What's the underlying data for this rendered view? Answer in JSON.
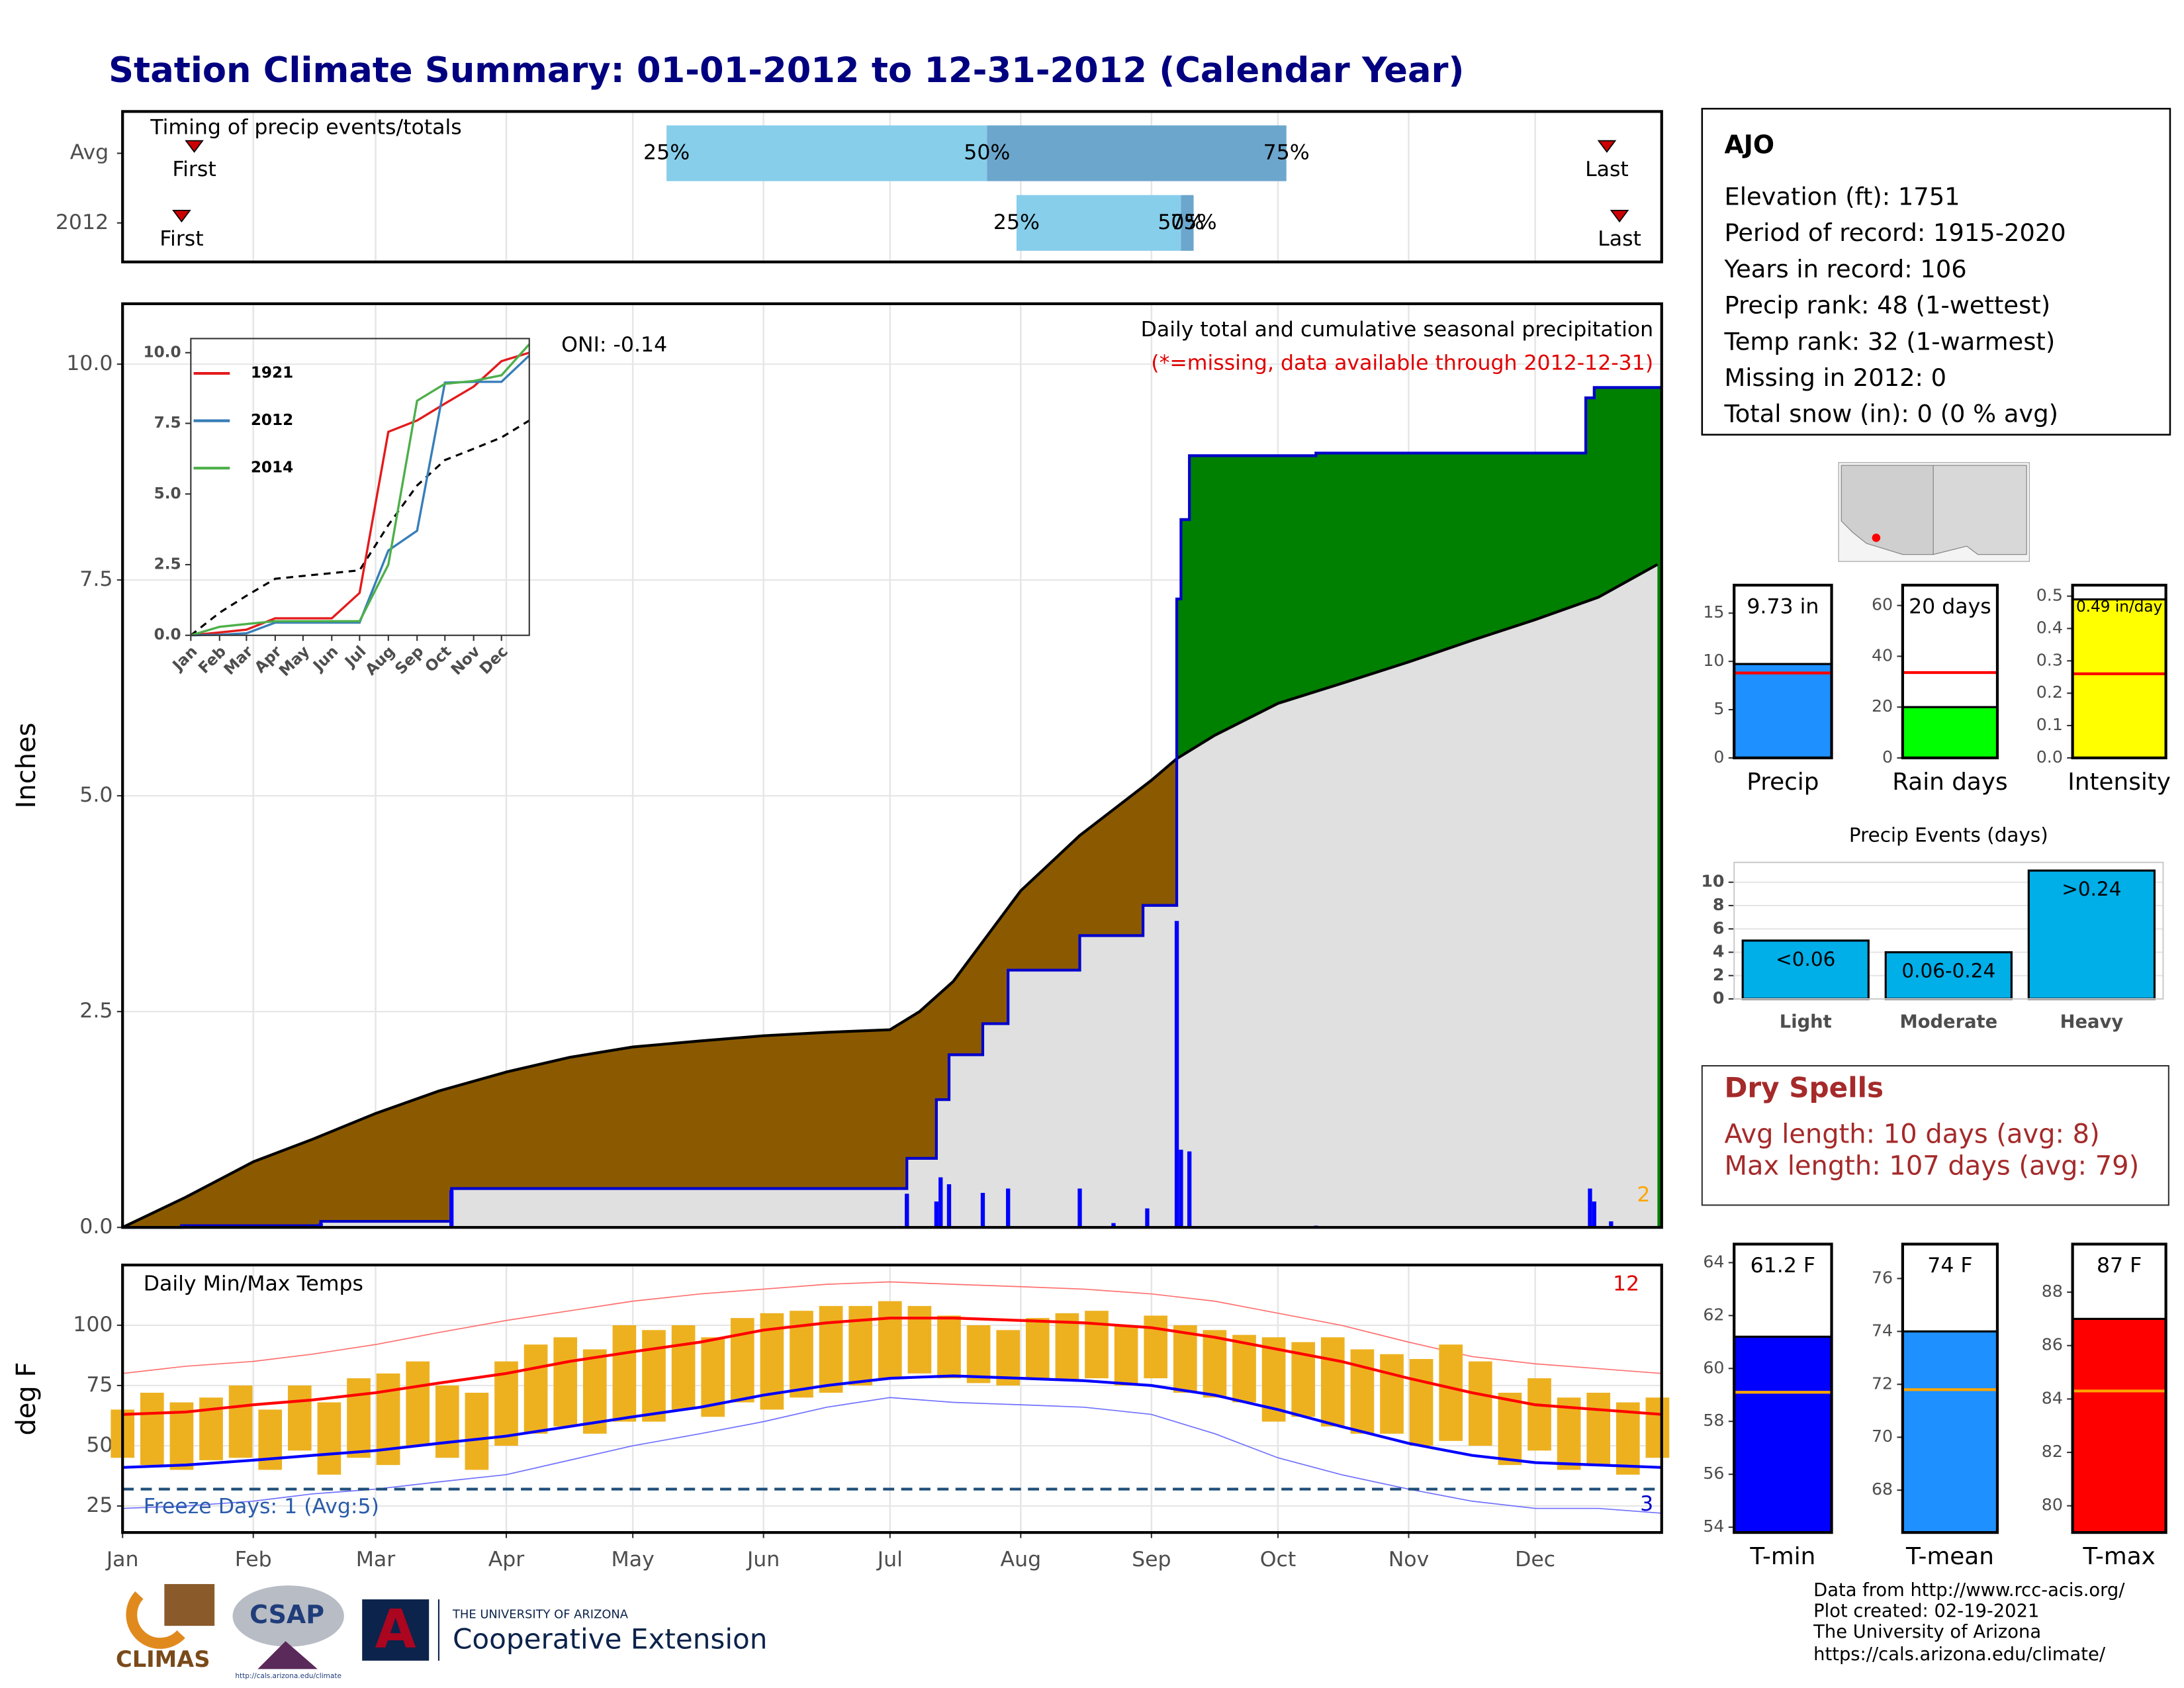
{
  "title": "Station Climate Summary: 01-01-2012 to 12-31-2012 (Calendar Year)",
  "station": {
    "name": "AJO",
    "lines": [
      "Elevation (ft): 1751",
      "Period of record: 1915-2020",
      "Years in record: 106",
      "Precip rank: 48 (1-wettest)",
      "Temp rank: 32 (1-warmest)",
      "Missing in 2012: 0",
      "Total snow (in): 0 (0 % avg)"
    ]
  },
  "dry_spells": {
    "title": "Dry Spells",
    "lines": [
      "Avg length: 10 days (avg: 8)",
      "Max length: 107 days (avg: 79)"
    ]
  },
  "footer": {
    "lines": [
      "Data from http://www.rcc-acis.org/",
      "Plot created: 02-19-2021",
      "The University of Arizona",
      "https://cals.arizona.edu/climate/"
    ]
  },
  "logos": {
    "climas": "CLIMAS",
    "csap": "CSAP",
    "csap_url": "http://cals.arizona.edu/climate",
    "university": "THE UNIVERSITY OF ARIZONA",
    "extension": "Cooperative Extension"
  },
  "chart_data": [
    {
      "type": "timing",
      "title": "Timing of precip events/totals",
      "xlim": [
        1,
        366
      ],
      "rows": [
        {
          "name": "Avg",
          "first": 18,
          "quartiles": [
            130,
            206,
            277
          ],
          "last": 353
        },
        {
          "name": "2012",
          "first": 15,
          "quartiles": [
            213,
            252,
            255
          ],
          "last": 356
        }
      ],
      "quartile_labels": [
        "25%",
        "50%",
        "75%"
      ],
      "first_label": "First",
      "last_label": "Last",
      "colors": [
        "#87ceeb",
        "#6ca6cd"
      ],
      "marker_color": "#cc0000",
      "grid": true
    },
    {
      "type": "cumulative",
      "title": "Daily total and cumulative seasonal precipitation",
      "subtitle": "(*=missing, data available through 2012-12-31)",
      "annotation": "ONI: -0.14",
      "note": "2",
      "ylabel": "Inches",
      "xlim": [
        1,
        366
      ],
      "ylim": [
        0,
        10.7
      ],
      "yticks": [
        {
          "value": 0,
          "label": "0.0"
        },
        2.5,
        {
          "value": 5,
          "label": "5.0"
        },
        7.5,
        {
          "value": 10,
          "label": "10.0"
        }
      ],
      "grid": true,
      "average": {
        "x": [
          1,
          16,
          32,
          46,
          61,
          76,
          92,
          107,
          122,
          138,
          153,
          168,
          183,
          190,
          198,
          214,
          228,
          245,
          251,
          260,
          275,
          290,
          306,
          321,
          336,
          351,
          365
        ],
        "values": [
          0,
          0.35,
          0.76,
          1.02,
          1.32,
          1.58,
          1.8,
          1.97,
          2.09,
          2.16,
          2.22,
          2.26,
          2.29,
          2.5,
          2.85,
          3.9,
          4.54,
          5.18,
          5.43,
          5.7,
          6.07,
          6.3,
          6.55,
          6.8,
          7.04,
          7.3,
          7.68
        ]
      },
      "observed": {
        "x": [
          1,
          15,
          15,
          48,
          48,
          79,
          79,
          187,
          187,
          194,
          194,
          197,
          197,
          205,
          205,
          211,
          211,
          228,
          228,
          243,
          243,
          251,
          251,
          252,
          252,
          254,
          254,
          284,
          284,
          348,
          348,
          350,
          350,
          366
        ],
        "values": [
          0,
          0,
          0.02,
          0.02,
          0.07,
          0.07,
          0.45,
          0.45,
          0.8,
          0.8,
          1.48,
          1.48,
          2.0,
          2.0,
          2.36,
          2.36,
          2.98,
          2.98,
          3.38,
          3.38,
          3.73,
          3.73,
          7.28,
          7.28,
          8.2,
          8.2,
          8.94,
          8.94,
          8.97,
          8.97,
          9.61,
          9.61,
          9.73,
          9.73
        ]
      },
      "daily": {
        "x": [
          15,
          48,
          79,
          187,
          194,
          195,
          197,
          205,
          211,
          228,
          236,
          244,
          251,
          252,
          254,
          284,
          349,
          350,
          354
        ],
        "values": [
          0.02,
          0.05,
          0.43,
          0.39,
          0.3,
          0.58,
          0.5,
          0.4,
          0.45,
          0.45,
          0.05,
          0.22,
          3.55,
          0.9,
          0.88,
          0.02,
          0.45,
          0.3,
          0.07
        ],
        "color": "#0000ff"
      },
      "colors": {
        "below": "#8b5a00",
        "above": "#008000",
        "base": "#e0e0e0",
        "observed_line": "#0000cc",
        "average_line": "#000000"
      }
    },
    {
      "type": "line",
      "xlim": [
        1,
        366
      ],
      "ylim": [
        0,
        10.5
      ],
      "yticks": [
        {
          "value": 0,
          "label": "0.0"
        },
        2.5,
        {
          "value": 5,
          "label": "5.0"
        },
        7.5,
        {
          "value": 10,
          "label": "10.0"
        }
      ],
      "xticks": [
        {
          "value": 1,
          "label": "Jan"
        },
        {
          "value": 32,
          "label": "Feb"
        },
        {
          "value": 61,
          "label": "Mar"
        },
        {
          "value": 92,
          "label": "Apr"
        },
        {
          "value": 122,
          "label": "May"
        },
        {
          "value": 153,
          "label": "Jun"
        },
        {
          "value": 183,
          "label": "Jul"
        },
        {
          "value": 214,
          "label": "Aug"
        },
        {
          "value": 245,
          "label": "Sep"
        },
        {
          "value": 275,
          "label": "Oct"
        },
        {
          "value": 306,
          "label": "Nov"
        },
        {
          "value": 336,
          "label": "Dec"
        }
      ],
      "x": [
        1,
        32,
        61,
        92,
        122,
        153,
        183,
        214,
        245,
        275,
        306,
        336,
        366
      ],
      "series": [
        {
          "name": "1921",
          "color": "#e41a1c",
          "values": [
            0,
            0.1,
            0.2,
            0.6,
            0.6,
            0.6,
            1.5,
            7.2,
            7.6,
            8.2,
            8.8,
            9.7,
            10.0
          ]
        },
        {
          "name": "2012",
          "color": "#377eb8",
          "values": [
            0,
            0.02,
            0.07,
            0.45,
            0.45,
            0.45,
            0.45,
            3.0,
            3.7,
            8.94,
            8.97,
            8.97,
            9.9
          ]
        },
        {
          "name": "2014",
          "color": "#4daf4a",
          "values": [
            0,
            0.3,
            0.4,
            0.5,
            0.5,
            0.5,
            0.5,
            2.5,
            8.3,
            8.9,
            9.0,
            9.2,
            10.3
          ]
        }
      ],
      "reference": {
        "color": "#000000",
        "dash": true,
        "values": [
          0,
          0.8,
          1.4,
          2.0,
          2.1,
          2.2,
          2.3,
          3.9,
          5.3,
          6.2,
          6.6,
          7.0,
          7.6
        ]
      }
    },
    {
      "type": "temperature",
      "title": "Daily Min/Max Temps",
      "ylabel": "deg F",
      "xlim": [
        1,
        366
      ],
      "ylim": [
        14,
        125
      ],
      "yticks": [
        25,
        50,
        75,
        100
      ],
      "grid": true,
      "xticks": [
        {
          "value": 1,
          "label": "Jan"
        },
        {
          "value": 32,
          "label": "Feb"
        },
        {
          "value": 61,
          "label": "Mar"
        },
        {
          "value": 92,
          "label": "Apr"
        },
        {
          "value": 122,
          "label": "May"
        },
        {
          "value": 153,
          "label": "Jun"
        },
        {
          "value": 183,
          "label": "Jul"
        },
        {
          "value": 214,
          "label": "Aug"
        },
        {
          "value": 245,
          "label": "Sep"
        },
        {
          "value": 275,
          "label": "Oct"
        },
        {
          "value": 306,
          "label": "Nov"
        },
        {
          "value": 336,
          "label": "Dec"
        }
      ],
      "annotation": "Freeze Days: 1 (Avg:5)",
      "record_high_count": 12,
      "record_low_count": 3,
      "freeze_line": 32,
      "observed": {
        "x": [
          1,
          8,
          15,
          22,
          29,
          36,
          43,
          50,
          57,
          64,
          71,
          78,
          85,
          92,
          99,
          106,
          113,
          120,
          127,
          134,
          141,
          148,
          155,
          162,
          169,
          176,
          183,
          190,
          197,
          204,
          211,
          218,
          225,
          232,
          239,
          246,
          253,
          260,
          267,
          274,
          281,
          288,
          295,
          302,
          309,
          316,
          323,
          330,
          337,
          344,
          351,
          358,
          365
        ],
        "min": [
          45,
          42,
          40,
          44,
          45,
          40,
          48,
          38,
          45,
          42,
          50,
          45,
          40,
          50,
          55,
          58,
          55,
          60,
          60,
          65,
          62,
          68,
          65,
          70,
          72,
          75,
          78,
          80,
          78,
          76,
          75,
          78,
          77,
          78,
          75,
          78,
          72,
          70,
          68,
          60,
          62,
          58,
          55,
          55,
          50,
          52,
          50,
          42,
          48,
          40,
          42,
          38,
          45
        ],
        "max": [
          65,
          72,
          68,
          70,
          75,
          65,
          75,
          68,
          78,
          80,
          85,
          75,
          72,
          85,
          92,
          95,
          90,
          100,
          98,
          100,
          95,
          103,
          105,
          106,
          108,
          108,
          110,
          108,
          104,
          100,
          98,
          103,
          105,
          106,
          100,
          104,
          100,
          98,
          96,
          95,
          93,
          95,
          90,
          88,
          86,
          92,
          85,
          72,
          78,
          70,
          72,
          68,
          70
        ],
        "color": "#edb120"
      },
      "normals": {
        "x": [
          1,
          16,
          32,
          46,
          61,
          76,
          92,
          107,
          122,
          138,
          153,
          168,
          183,
          198,
          214,
          229,
          245,
          260,
          275,
          290,
          306,
          321,
          336,
          351,
          366
        ],
        "series": [
          {
            "color": "#ff7070",
            "width": 0.8,
            "values": [
              80,
              83,
              85,
              88,
              92,
              97,
              102,
              106,
              110,
              113,
              115,
              117,
              118,
              117,
              116,
              115,
              113,
              110,
              105,
              100,
              93,
              87,
              84,
              82,
              80
            ]
          },
          {
            "color": "#7070ff",
            "width": 0.8,
            "values": [
              24,
              25,
              27,
              30,
              32,
              35,
              38,
              44,
              50,
              55,
              60,
              66,
              70,
              68,
              67,
              66,
              63,
              55,
              45,
              38,
              32,
              27,
              24,
              24,
              22
            ]
          },
          {
            "color": "#ff0000",
            "width": 2,
            "values": [
              63,
              64,
              67,
              69,
              72,
              76,
              80,
              85,
              89,
              93,
              98,
              101,
              103,
              103,
              102,
              101,
              99,
              95,
              90,
              85,
              78,
              72,
              67,
              65,
              63
            ]
          },
          {
            "color": "#0000ff",
            "width": 2,
            "values": [
              41,
              42,
              44,
              46,
              48,
              51,
              54,
              58,
              62,
              66,
              71,
              75,
              78,
              79,
              78,
              77,
              75,
              71,
              65,
              58,
              51,
              46,
              43,
              42,
              41
            ]
          }
        ]
      }
    },
    {
      "type": "bar",
      "categories": [
        "Precip"
      ],
      "values": [
        9.73
      ],
      "value_labels": [
        "9.73 in"
      ],
      "average": [
        8.8
      ],
      "ylim": [
        0,
        17.9
      ],
      "yticks": [
        0,
        5,
        10,
        15
      ],
      "color": "#1e90ff",
      "average_color": "#ff0000"
    },
    {
      "type": "bar",
      "categories": [
        "Rain days"
      ],
      "values": [
        20
      ],
      "value_labels": [
        "20 days"
      ],
      "average": [
        33.6
      ],
      "ylim": [
        0,
        68
      ],
      "yticks": [
        0,
        20,
        40,
        60
      ],
      "color": "#00ff00",
      "average_color": "#ff0000"
    },
    {
      "type": "bar",
      "categories": [
        "Intensity"
      ],
      "values": [
        0.49
      ],
      "value_labels": [
        "0.49 in/day"
      ],
      "average": [
        0.26
      ],
      "ylim": [
        0,
        0.534
      ],
      "yticks": [
        {
          "value": 0,
          "label": "0.0"
        },
        0.1,
        0.2,
        0.3,
        0.4,
        0.5
      ],
      "color": "#ffff00",
      "average_color": "#ff0000"
    },
    {
      "type": "bar",
      "title": "Precip Events (days)",
      "categories": [
        "Light",
        "Moderate",
        "Heavy"
      ],
      "values": [
        5,
        4,
        11
      ],
      "thresholds": [
        "<0.06",
        "0.06-0.24",
        ">0.24"
      ],
      "ylim": [
        0,
        11.7
      ],
      "yticks": [
        0,
        2,
        4,
        6,
        8,
        10
      ],
      "color": "#00aee8",
      "grid": true
    },
    {
      "type": "bar",
      "categories": [
        "T-min"
      ],
      "values": [
        61.2
      ],
      "value_labels": [
        "61.2 F"
      ],
      "average": [
        59.1
      ],
      "ylim": [
        53.8,
        64.7
      ],
      "yticks": [
        54,
        56,
        58,
        60,
        62,
        64
      ],
      "color": "#0000ff",
      "average_color": "#ffa500"
    },
    {
      "type": "bar",
      "categories": [
        "T-mean"
      ],
      "values": [
        74
      ],
      "value_labels": [
        "74 F"
      ],
      "average": [
        71.8
      ],
      "ylim": [
        66.4,
        77.3
      ],
      "yticks": [
        68,
        70,
        72,
        74,
        76
      ],
      "color": "#1e90ff",
      "average_color": "#ffa500"
    },
    {
      "type": "bar",
      "categories": [
        "T-max"
      ],
      "values": [
        87
      ],
      "value_labels": [
        "87 F"
      ],
      "average": [
        84.3
      ],
      "ylim": [
        79,
        89.8
      ],
      "yticks": [
        80,
        82,
        84,
        86,
        88
      ],
      "color": "#ff0000",
      "average_color": "#ffa500"
    }
  ]
}
